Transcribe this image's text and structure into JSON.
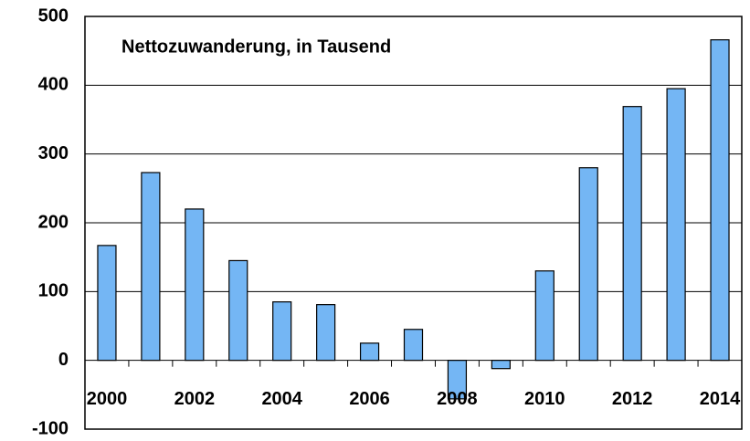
{
  "chart_data": {
    "type": "bar",
    "title": "Nettozuwanderung, in Tausend",
    "categories": [
      "2000",
      null,
      "2002",
      null,
      "2004",
      null,
      "2006",
      null,
      "2008",
      null,
      "2010",
      null,
      "2012",
      null,
      "2014"
    ],
    "values": [
      167,
      273,
      220,
      145,
      85,
      81,
      25,
      45,
      -56,
      -12,
      130,
      280,
      369,
      395,
      466
    ],
    "color": "#74b6f4",
    "ylim": [
      -100,
      500
    ],
    "yticks": [
      -100,
      0,
      100,
      200,
      300,
      400,
      500
    ],
    "grid": true
  }
}
